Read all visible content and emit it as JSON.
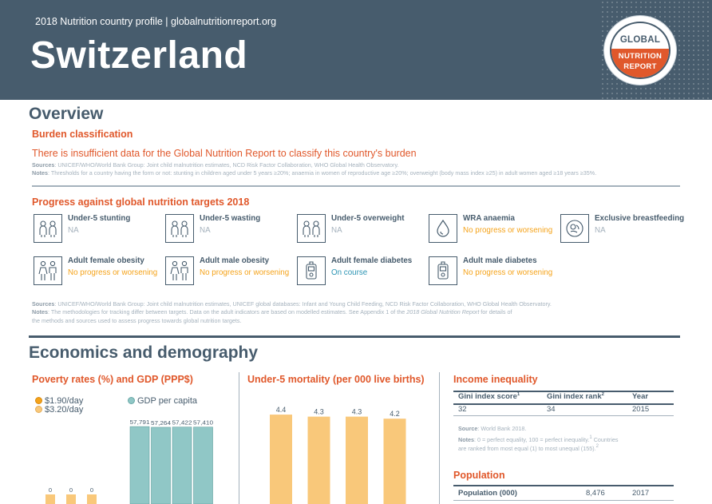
{
  "header": {
    "subtitle": "2018 Nutrition country profile  |  globalnutritionreport.org",
    "country": "Switzerland",
    "logo": {
      "line1": "GLOBAL",
      "line2": "NUTRITION",
      "line3": "REPORT"
    }
  },
  "overview": {
    "title": "Overview",
    "burden_title": "Burden classification",
    "burden_text": "There is insufficient data for the Global Nutrition Report to classify this country's burden",
    "sources_label": "Sources",
    "sources_text": ": UNICEF/WHO/World Bank Group: Joint child malnutrition estimates, NCD Risk Factor Collaboration, WHO Global Health Observatory.",
    "notes_label": "Notes",
    "notes_text": ": Thresholds for a country having the form or not: stunting in children aged under 5 years ≥20%; anaemia in women of reproductive age ≥20%; overweight (body mass index ≥25) in adult women aged ≥18 years ≥35%."
  },
  "progress": {
    "title": "Progress against global nutrition targets 2018",
    "targets": [
      {
        "label": "Under-5 stunting",
        "status": "NA",
        "icon": "children-icon"
      },
      {
        "label": "Under-5 wasting",
        "status": "NA",
        "icon": "children-icon"
      },
      {
        "label": "Under-5 overweight",
        "status": "NA",
        "icon": "children-icon"
      },
      {
        "label": "WRA anaemia",
        "status": "No progress or worsening",
        "icon": "blood-drop-icon"
      },
      {
        "label": "Exclusive breastfeeding",
        "status": "NA",
        "icon": "breastfeeding-icon"
      },
      {
        "label": "Adult female obesity",
        "status": "No progress or worsening",
        "icon": "adults-icon"
      },
      {
        "label": "Adult male obesity",
        "status": "No progress or worsening",
        "icon": "adults-icon"
      },
      {
        "label": "Adult female diabetes",
        "status": "On course",
        "icon": "glucose-meter-icon"
      },
      {
        "label": "Adult male diabetes",
        "status": "No progress or worsening",
        "icon": "glucose-meter-icon"
      }
    ],
    "sources_label": "Sources",
    "sources_text": ": UNICEF/WHO/World Bank Group: Joint child malnutrition estimates, UNICEF global databases: Infant and Young Child Feeding, NCD Risk Factor Collaboration, WHO Global Health Observatory.",
    "notes_label": "Notes",
    "notes_text1": ": The methodologies for tracking differ between targets. Data on the adult indicators are based on modelled estimates. See Appendix 1 of the ",
    "notes_italic": "2018 Global Nutrition Report",
    "notes_text1b": " for details of",
    "notes_text2": "the methods and sources used to assess progress towards global nutrition targets."
  },
  "economics": {
    "title": "Economics and demography",
    "poverty_title": "Poverty rates (%) and GDP (PPP$)",
    "mortality_title": "Under-5 mortality (per 000 live births)",
    "income_title": "Income inequality",
    "population_title": "Population"
  },
  "chart_data": [
    {
      "type": "bar",
      "title": "Poverty rates (%) and GDP (PPP$)",
      "series": [
        {
          "name": "$1.90/day",
          "values": [
            0,
            0,
            0
          ],
          "labels": [
            "0",
            "0",
            "0"
          ],
          "color": "#f5a31a"
        },
        {
          "name": "$3.20/day",
          "values": [
            0,
            0,
            0
          ],
          "color": "#f9c87a"
        },
        {
          "name": "GDP per capita",
          "values": [
            57791,
            57264,
            57422,
            57410
          ],
          "labels": [
            "57,791",
            "57,264",
            "57,422",
            "57,410"
          ],
          "color": "#90c7c6"
        }
      ]
    },
    {
      "type": "bar",
      "title": "Under-5 mortality (per 000 live births)",
      "values": [
        4.4,
        4.3,
        4.3,
        4.2
      ],
      "labels": [
        "4.4",
        "4.3",
        "4.3",
        "4.2"
      ],
      "color": "#f9c87a"
    }
  ],
  "income": {
    "headers": [
      "Gini index score",
      "Gini index rank",
      "Year"
    ],
    "sup1": "1",
    "sup2": "2",
    "row": [
      "32",
      "34",
      "2015"
    ],
    "source_label": "Source",
    "source_text": ": World Bank 2018.",
    "notes_label": "Notes",
    "notes_line1": ": 0 = perfect equality, 100 = perfect inequality.",
    "notes_sup1": "1",
    "notes_line1b": " Countries",
    "notes_line2": "are ranked from most equal (1) to most unequal (155).",
    "notes_sup2": "2"
  },
  "population": {
    "label": "Population (000)",
    "value": "8,476",
    "year": "2017"
  }
}
